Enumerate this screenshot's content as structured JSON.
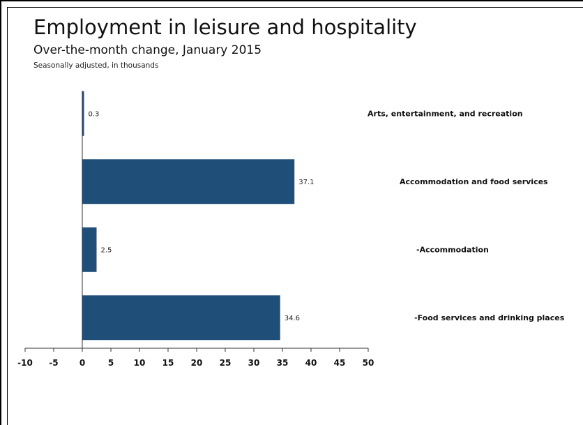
{
  "chart_data": {
    "type": "bar",
    "orientation": "horizontal",
    "title": "Employment in leisure and hospitality",
    "subtitle": "Over-the-month change, January 2015",
    "note": "Seasonally adjusted, in thousands",
    "categories": [
      "Arts, entertainment, and recreation",
      "Accommodation and food services",
      "-Accommodation",
      "-Food services and drinking places"
    ],
    "values": [
      0.3,
      37.1,
      2.5,
      34.6
    ],
    "value_labels": [
      "0.3",
      "37.1",
      "2.5",
      "34.6"
    ],
    "xlim": [
      -10,
      50
    ],
    "xticks": [
      -10,
      -5,
      0,
      5,
      10,
      15,
      20,
      25,
      30,
      35,
      40,
      45,
      50
    ],
    "bar_color": "#1f4e79",
    "grid": false,
    "legend": "none"
  }
}
